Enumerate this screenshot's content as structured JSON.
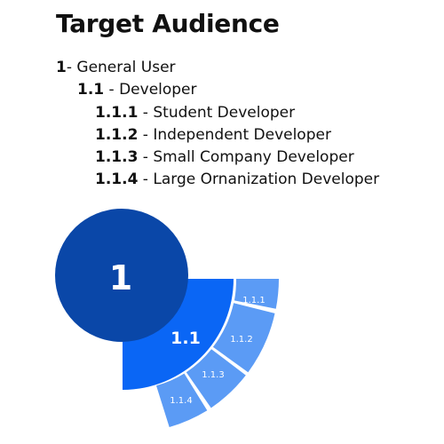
{
  "title": "Target Audience",
  "tree": [
    {
      "number": "1",
      "separator": "- ",
      "label": "General User"
    },
    {
      "number": "1.1",
      "separator": " - ",
      "label": "Developer"
    },
    {
      "number": "1.1.1",
      "separator": " - ",
      "label": "Student Developer"
    },
    {
      "number": "1.1.2",
      "separator": " - ",
      "label": "Independent Developer"
    },
    {
      "number": "1.1.3",
      "separator": " - ",
      "label": "Small Company Developer"
    },
    {
      "number": "1.1.4",
      "separator": " - ",
      "label": "Large Ornanization Developer"
    }
  ],
  "diagram": {
    "root_label": "1",
    "level1_label": "1.1",
    "level2_labels": [
      "1.1.1",
      "1.1.2",
      "1.1.3",
      "1.1.4"
    ],
    "colors": {
      "root": "#0a47a8",
      "level1": "#0a66f5",
      "level2": "#5b9bf5"
    }
  }
}
